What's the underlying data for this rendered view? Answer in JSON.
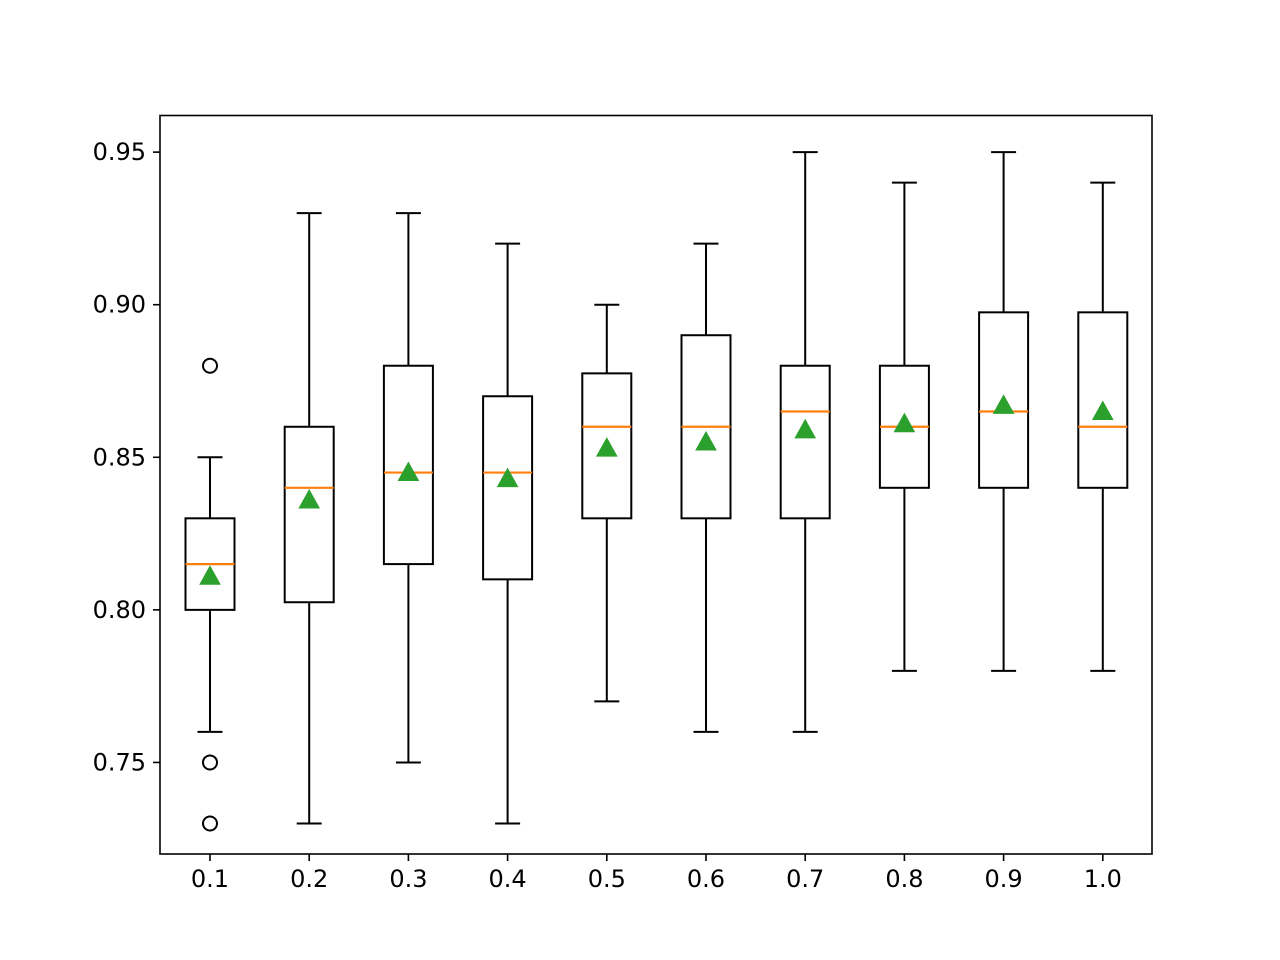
{
  "chart_data": {
    "type": "box",
    "title": "",
    "xlabel": "",
    "ylabel": "",
    "ylim": [
      0.72,
      0.962
    ],
    "y_ticks": [
      "0.75",
      "0.80",
      "0.85",
      "0.90",
      "0.95"
    ],
    "y_tick_values": [
      0.75,
      0.8,
      0.85,
      0.9,
      0.95
    ],
    "categories": [
      "0.1",
      "0.2",
      "0.3",
      "0.4",
      "0.5",
      "0.6",
      "0.7",
      "0.8",
      "0.9",
      "1.0"
    ],
    "boxes": [
      {
        "category": "0.1",
        "whisker_low": 0.76,
        "q1": 0.8,
        "median": 0.815,
        "q3": 0.83,
        "whisker_high": 0.85,
        "mean": 0.811,
        "outliers": [
          0.88,
          0.75,
          0.73
        ]
      },
      {
        "category": "0.2",
        "whisker_low": 0.73,
        "q1": 0.8025,
        "median": 0.84,
        "q3": 0.86,
        "whisker_high": 0.93,
        "mean": 0.836,
        "outliers": []
      },
      {
        "category": "0.3",
        "whisker_low": 0.75,
        "q1": 0.815,
        "median": 0.845,
        "q3": 0.88,
        "whisker_high": 0.93,
        "mean": 0.845,
        "outliers": []
      },
      {
        "category": "0.4",
        "whisker_low": 0.73,
        "q1": 0.81,
        "median": 0.845,
        "q3": 0.87,
        "whisker_high": 0.92,
        "mean": 0.843,
        "outliers": []
      },
      {
        "category": "0.5",
        "whisker_low": 0.77,
        "q1": 0.83,
        "median": 0.86,
        "q3": 0.8775,
        "whisker_high": 0.9,
        "mean": 0.853,
        "outliers": []
      },
      {
        "category": "0.6",
        "whisker_low": 0.76,
        "q1": 0.83,
        "median": 0.86,
        "q3": 0.89,
        "whisker_high": 0.92,
        "mean": 0.855,
        "outliers": []
      },
      {
        "category": "0.7",
        "whisker_low": 0.76,
        "q1": 0.83,
        "median": 0.865,
        "q3": 0.88,
        "whisker_high": 0.95,
        "mean": 0.859,
        "outliers": []
      },
      {
        "category": "0.8",
        "whisker_low": 0.78,
        "q1": 0.84,
        "median": 0.86,
        "q3": 0.88,
        "whisker_high": 0.94,
        "mean": 0.861,
        "outliers": []
      },
      {
        "category": "0.9",
        "whisker_low": 0.78,
        "q1": 0.84,
        "median": 0.865,
        "q3": 0.8975,
        "whisker_high": 0.95,
        "mean": 0.867,
        "outliers": []
      },
      {
        "category": "1.0",
        "whisker_low": 0.78,
        "q1": 0.84,
        "median": 0.86,
        "q3": 0.8975,
        "whisker_high": 0.94,
        "mean": 0.865,
        "outliers": []
      }
    ],
    "colors": {
      "box": "#000000",
      "median": "#ff7f0e",
      "mean": "#2ca02c",
      "axes": "#000000",
      "background": "#ffffff"
    },
    "grid": false,
    "legend": "none"
  }
}
